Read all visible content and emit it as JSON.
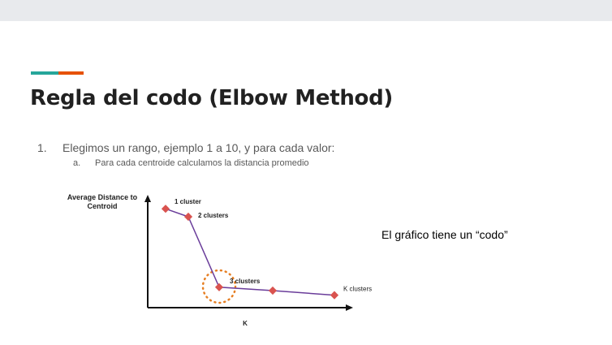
{
  "slide": {
    "title": "Regla del codo (Elbow Method)",
    "list": [
      {
        "marker": "1.",
        "text": "Elegimos un rango, ejemplo 1 a 10, y para cada valor:"
      },
      {
        "marker": "a.",
        "text": "Para cada centroide calculamos la distancia promedio"
      }
    ],
    "note": "El gráfico tiene un “codo”",
    "colors": {
      "accent_teal": "#26a69a",
      "accent_orange": "#e65100",
      "line": "#6a3d9a",
      "marker": "#d9534f",
      "circle": "#e67e22"
    }
  },
  "chart_data": {
    "type": "line",
    "ylabel_lines": [
      "Average Distance to",
      "Centroid"
    ],
    "xlabel": "K",
    "points": [
      {
        "label": "1 cluster",
        "x": 1,
        "y": 0.87
      },
      {
        "label": "2 clusters",
        "x": 2,
        "y": 0.8
      },
      {
        "label": "3 clusters",
        "x": 3,
        "y": 0.18
      },
      {
        "label": "",
        "x": 4,
        "y": 0.15
      },
      {
        "label": "K clusters",
        "x": 5,
        "y": 0.11
      }
    ],
    "highlight": "3 clusters"
  }
}
